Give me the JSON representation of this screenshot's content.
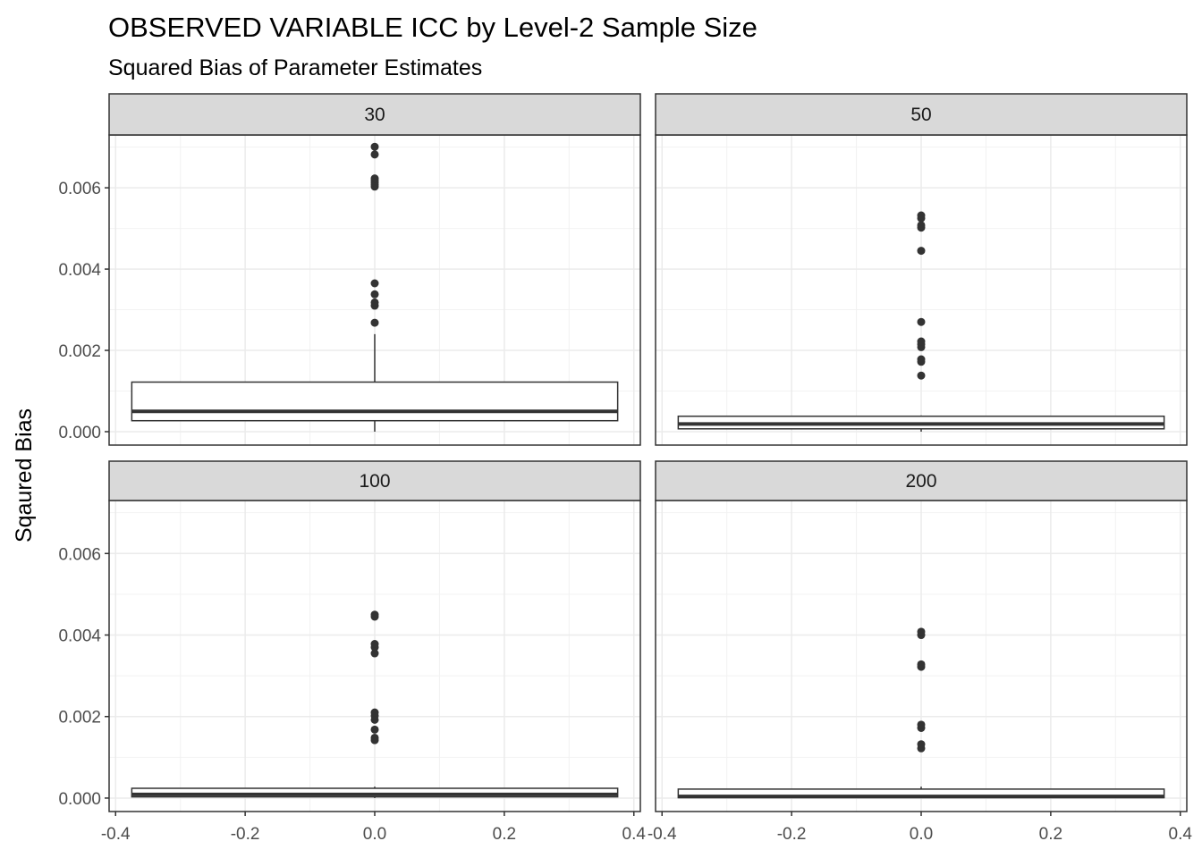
{
  "chart_data": {
    "type": "boxplot",
    "title": "OBSERVED VARIABLE ICC by Level-2 Sample Size",
    "subtitle": "Squared Bias of Parameter Estimates",
    "xlabel": "",
    "ylabel": "Sqaured Bias",
    "xlim": [
      -0.41,
      0.41
    ],
    "ylim": [
      -0.00033,
      0.0073
    ],
    "x_ticks": [
      -0.4,
      -0.2,
      0.0,
      0.2,
      0.4
    ],
    "x_tick_labels": [
      "-0.4",
      "-0.2",
      "0.0",
      "0.2",
      "0.4"
    ],
    "y_ticks": [
      0,
      0.002,
      0.004,
      0.006
    ],
    "y_tick_labels": [
      "0.000",
      "0.002",
      "0.004",
      "0.006"
    ],
    "grid": true,
    "box_x_range": [
      -0.375,
      0.375
    ],
    "panels": [
      {
        "label": "30",
        "box": {
          "lower_whisker": 0.0,
          "q1": 0.00027,
          "median": 0.0005,
          "q3": 0.00122,
          "upper_whisker": 0.0024
        },
        "outliers": [
          0.00268,
          0.0031,
          0.00318,
          0.00338,
          0.00365,
          0.00603,
          0.00608,
          0.00613,
          0.00618,
          0.00623,
          0.00682,
          0.00701
        ]
      },
      {
        "label": "50",
        "box": {
          "lower_whisker": 0.0,
          "q1": 7e-05,
          "median": 0.00019,
          "q3": 0.00038,
          "upper_whisker": 0.0004
        },
        "outliers": [
          0.00138,
          0.00172,
          0.00178,
          0.00208,
          0.00215,
          0.00222,
          0.0027,
          0.00445,
          0.00502,
          0.00508,
          0.00525,
          0.00532
        ]
      },
      {
        "label": "100",
        "box": {
          "lower_whisker": 0.0,
          "q1": 3e-05,
          "median": 9e-05,
          "q3": 0.00024,
          "upper_whisker": 0.00028
        },
        "outliers": [
          0.00142,
          0.00148,
          0.00168,
          0.00192,
          0.00202,
          0.0021,
          0.00355,
          0.0037,
          0.00378,
          0.00445,
          0.0045
        ]
      },
      {
        "label": "200",
        "box": {
          "lower_whisker": 0.0,
          "q1": 1e-05,
          "median": 4e-05,
          "q3": 0.00022,
          "upper_whisker": 0.00028
        },
        "outliers": [
          0.00122,
          0.00132,
          0.00172,
          0.0018,
          0.00322,
          0.00328,
          0.004,
          0.00408
        ]
      }
    ]
  }
}
